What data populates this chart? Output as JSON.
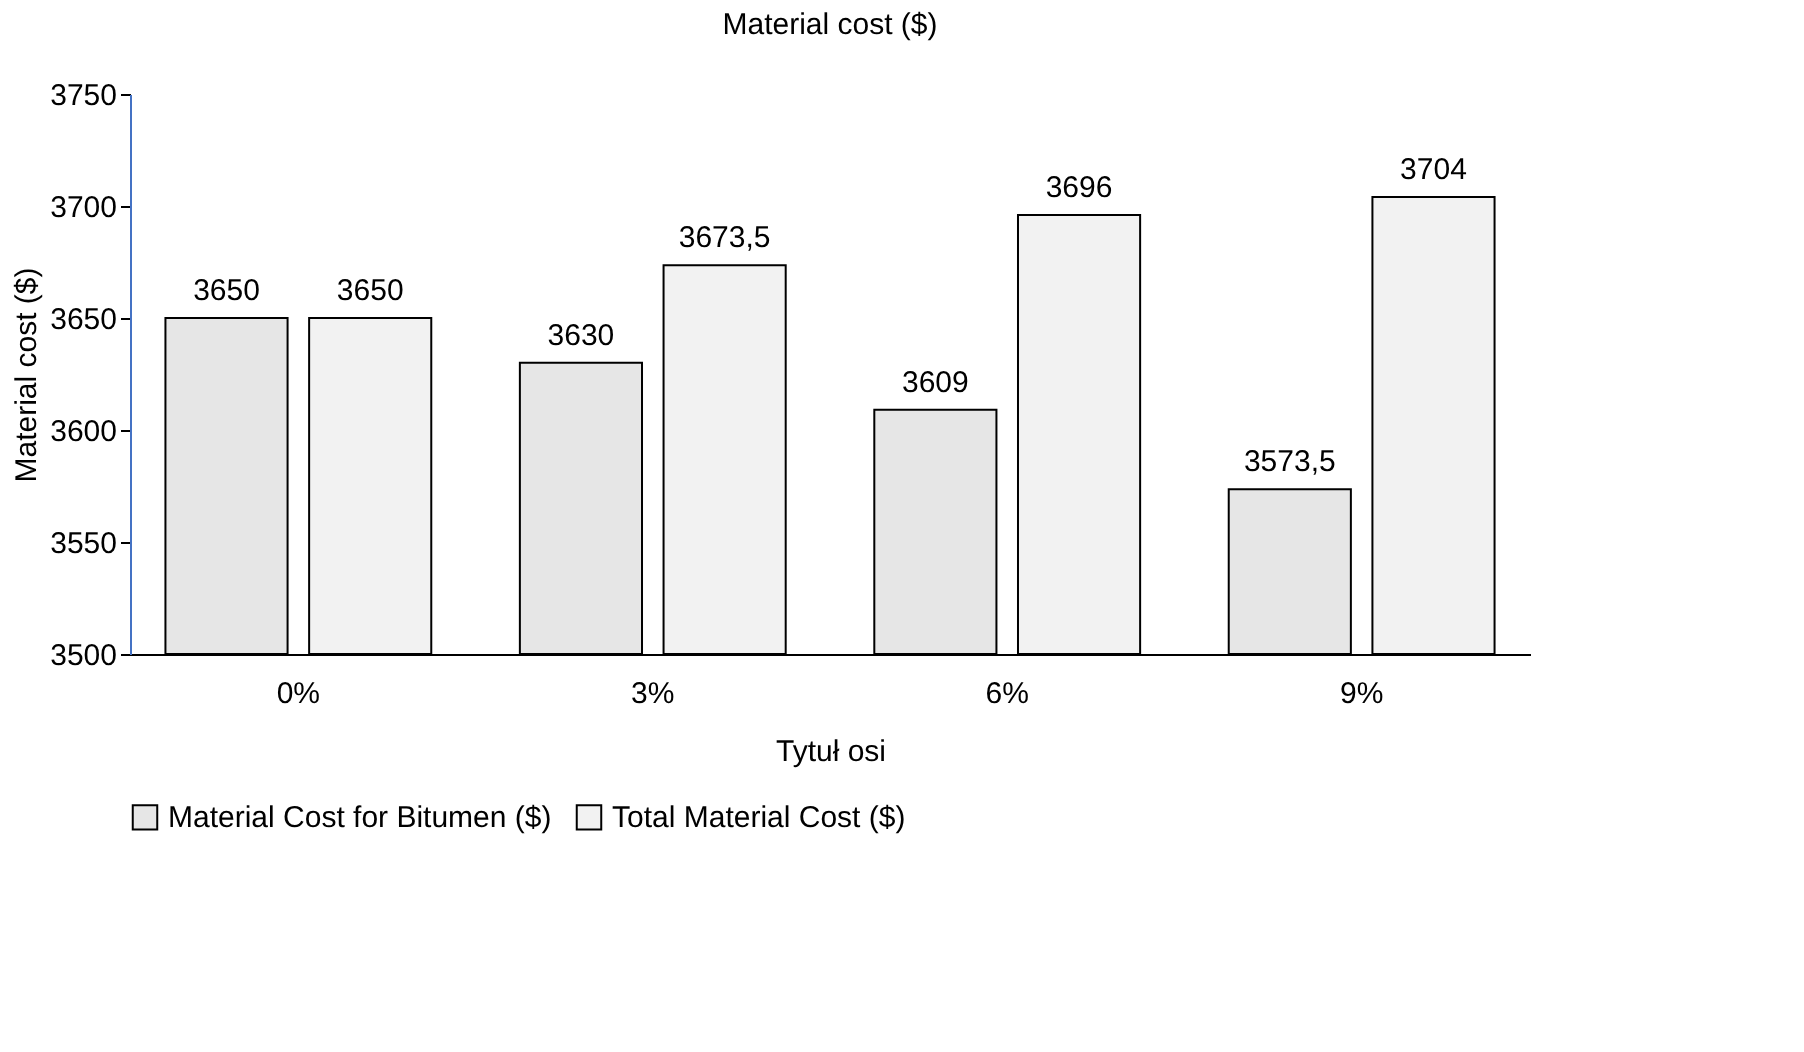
{
  "chart_data": {
    "type": "bar",
    "title": "Material cost  ($)",
    "xlabel": "Tytuł osi",
    "ylabel": "Material cost  ($)",
    "categories": [
      "0%",
      "3%",
      "6%",
      "9%"
    ],
    "series": [
      {
        "name": "Material Cost for Bitumen ($)",
        "color": "#e6e6e6",
        "values": [
          3650,
          3630,
          3609,
          3573.5
        ],
        "value_labels": [
          "3650",
          "3630",
          "3609",
          "3573,5"
        ]
      },
      {
        "name": "Total Material Cost ($)",
        "color": "#f2f2f2",
        "values": [
          3650,
          3673.5,
          3696,
          3704
        ],
        "value_labels": [
          "3650",
          "3673,5",
          "3696",
          "3704"
        ]
      }
    ],
    "ylim": [
      3500,
      3750
    ],
    "yticks": [
      3500,
      3550,
      3600,
      3650,
      3700,
      3750
    ],
    "grid": false,
    "legend": "bottom"
  }
}
